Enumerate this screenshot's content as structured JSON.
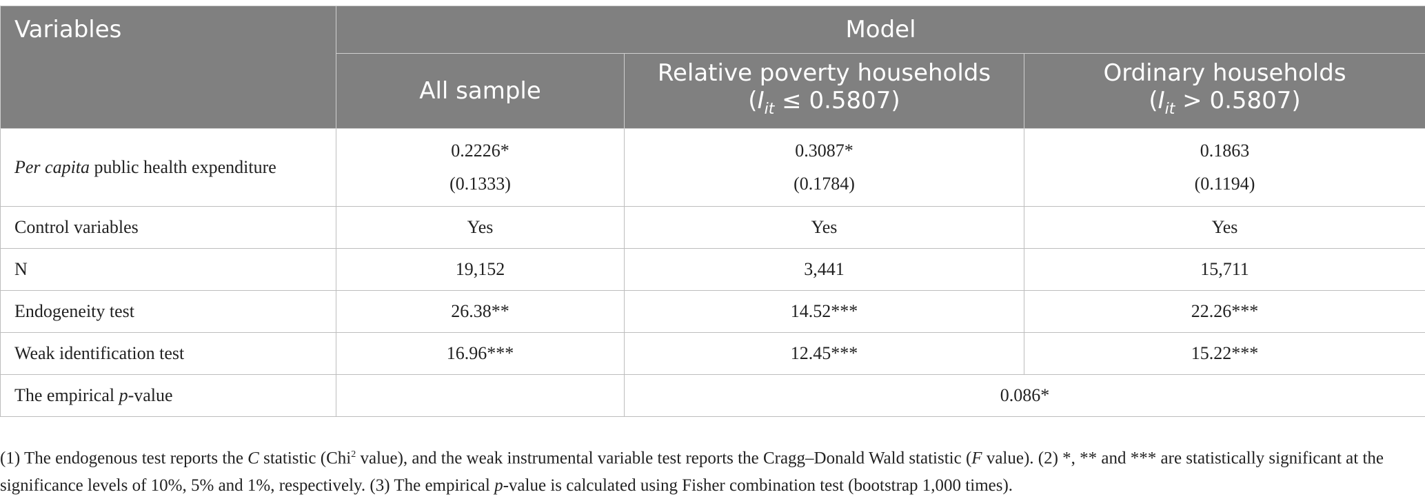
{
  "header": {
    "variables": "Variables",
    "model": "Model",
    "col_all": "All sample",
    "col_poverty": "Relative poverty households",
    "col_poverty_cond": {
      "prefix": "(",
      "sym": "I",
      "sub": "it",
      "rest": " ≤ 0.5807)"
    },
    "col_ordinary": "Ordinary households",
    "col_ordinary_cond": {
      "prefix": "(",
      "sym": "I",
      "sub": "it",
      "rest": " > 0.5807)"
    }
  },
  "rows": {
    "health": {
      "label_italic": "Per capita",
      "label_rest": " public health expenditure",
      "all": "0.2226*",
      "all_se": "(0.1333)",
      "poverty": "0.3087*",
      "poverty_se": "(0.1784)",
      "ordinary": "0.1863",
      "ordinary_se": "(0.1194)"
    },
    "controls": {
      "label": "Control variables",
      "all": "Yes",
      "poverty": "Yes",
      "ordinary": "Yes"
    },
    "n": {
      "label": "N",
      "all": "19,152",
      "poverty": "3,441",
      "ordinary": "15,711"
    },
    "endo": {
      "label": "Endogeneity test",
      "all": "26.38**",
      "poverty": "14.52***",
      "ordinary": "22.26***"
    },
    "weak": {
      "label": "Weak identification test",
      "all": "16.96***",
      "poverty": "12.45***",
      "ordinary": "15.22***"
    },
    "pvalue": {
      "label_pre": "The empirical ",
      "label_italic": "p",
      "label_post": "-value",
      "value": "0.086*"
    }
  },
  "note": {
    "p1": "(1) The endogenous test reports the ",
    "c_sym": "C",
    "p2": " statistic (Chi",
    "sup": "2",
    "p3": " value), and the weak instrumental variable test reports the Cragg–Donald Wald statistic (",
    "f_sym": "F",
    "p4": " value). (2) *, ** and *** are statistically significant at the significance levels of 10%, 5% and 1%, respectively. (3) The empirical ",
    "p_sym": "p",
    "p5": "-value is calculated using Fisher combination test (bootstrap 1,000 times)."
  }
}
